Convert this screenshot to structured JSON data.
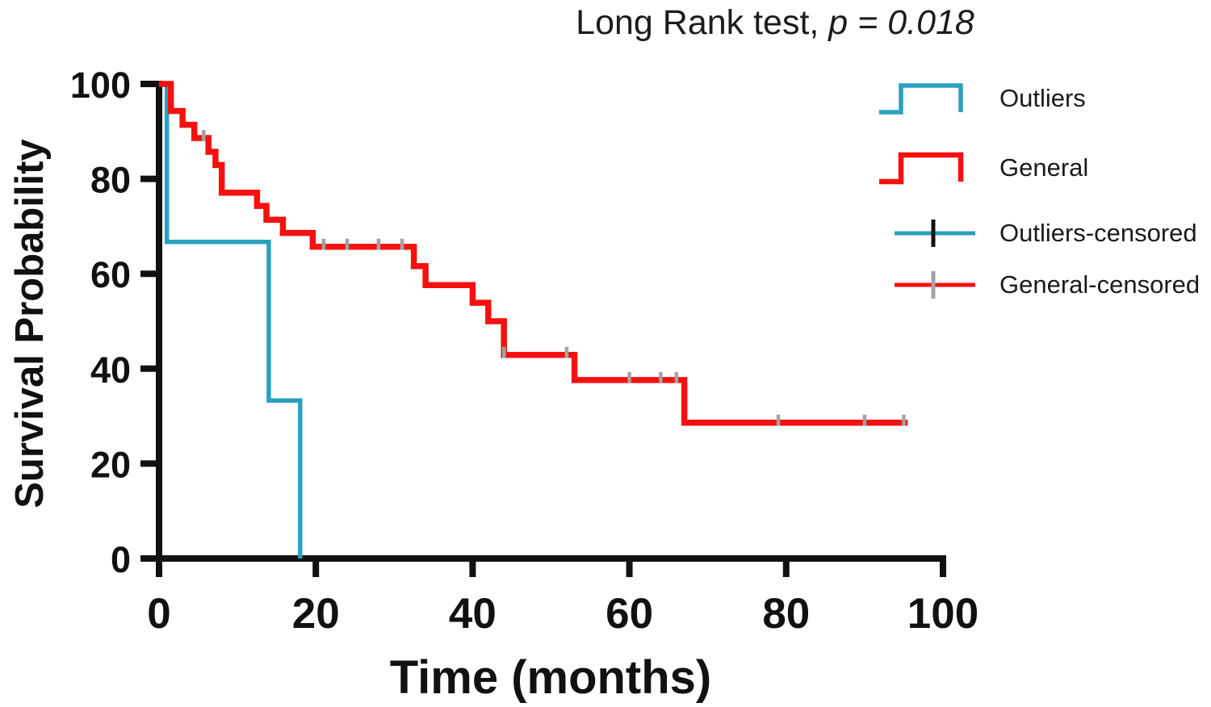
{
  "title": {
    "prefix": "Long Rank test, ",
    "stat": "p = 0.018"
  },
  "axes": {
    "x_label": "Time (months)",
    "y_label": "Survival Probability"
  },
  "colors": {
    "outliers": "#2aa0bf",
    "general": "#f7100f",
    "censor_gray": "#a3a3a3",
    "censor_black": "#111111",
    "axis": "#111111"
  },
  "legend": {
    "items": [
      {
        "label": "Outliers",
        "symbol": "step-line",
        "color_key": "outliers"
      },
      {
        "label": "General",
        "symbol": "step-line",
        "color_key": "general"
      },
      {
        "label": "Outliers-censored",
        "symbol": "censored-tick",
        "color_key": "outliers"
      },
      {
        "label": "General-censored",
        "symbol": "censored-tick",
        "color_key": "general"
      }
    ]
  },
  "chart_data": {
    "type": "line",
    "subtype": "kaplan-meier-step",
    "title": "Long Rank test, p = 0.018",
    "xlabel": "Time (months)",
    "ylabel": "Survival Probability",
    "xlim": [
      0,
      100
    ],
    "ylim": [
      0,
      100
    ],
    "x_ticks": [
      0,
      20,
      40,
      60,
      80,
      100
    ],
    "y_ticks": [
      0,
      20,
      40,
      60,
      80,
      100
    ],
    "grid": false,
    "legend_position": "right",
    "series": [
      {
        "name": "Outliers",
        "color_key": "outliers",
        "line_width": 5.5,
        "points": [
          [
            0,
            100
          ],
          [
            1,
            66.7
          ],
          [
            14,
            33.3
          ],
          [
            18,
            0
          ]
        ],
        "end_t": 18,
        "censored": [],
        "censor_color_key": "censor_black"
      },
      {
        "name": "General",
        "color_key": "general",
        "line_width": 7.5,
        "points": [
          [
            0,
            100
          ],
          [
            1.5,
            94.3
          ],
          [
            3,
            91.4
          ],
          [
            4.5,
            88.6
          ],
          [
            6.3,
            85.7
          ],
          [
            7.2,
            82.9
          ],
          [
            8,
            77.1
          ],
          [
            12.5,
            74.3
          ],
          [
            13.7,
            71.4
          ],
          [
            15.8,
            68.6
          ],
          [
            19.6,
            65.7
          ],
          [
            32.5,
            61.6
          ],
          [
            34,
            57.6
          ],
          [
            40,
            53.9
          ],
          [
            42,
            50.0
          ],
          [
            44,
            42.9
          ],
          [
            53,
            37.6
          ],
          [
            67,
            28.6
          ]
        ],
        "end_t": 95.5,
        "censored": [
          [
            5.7,
            88.6
          ],
          [
            21,
            65.7
          ],
          [
            24,
            65.7
          ],
          [
            28,
            65.7
          ],
          [
            31,
            65.7
          ],
          [
            44,
            42.9
          ],
          [
            52,
            42.9
          ],
          [
            60,
            37.6
          ],
          [
            64,
            37.6
          ],
          [
            66,
            37.6
          ],
          [
            79,
            28.6
          ],
          [
            90,
            28.6
          ],
          [
            95,
            28.6
          ]
        ],
        "censor_color_key": "censor_gray"
      }
    ]
  }
}
